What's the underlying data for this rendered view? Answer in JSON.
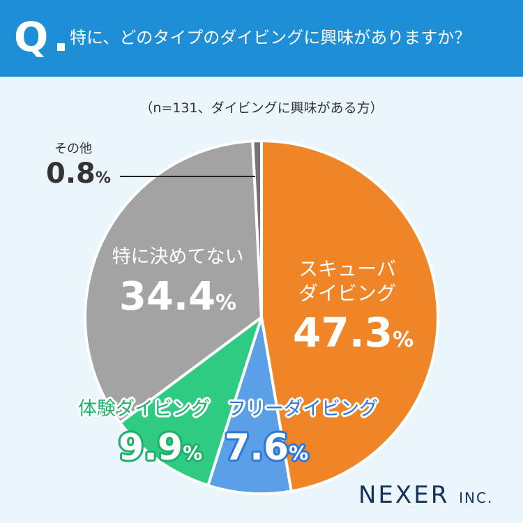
{
  "header": {
    "q_mark": "Q",
    "question": "特に、どのタイプのダイビングに興味がありますか？"
  },
  "subtitle": "（n=131、ダイビングに興味がある方）",
  "brand": {
    "name": "NEXER",
    "suffix": "INC."
  },
  "chart_data": {
    "type": "pie",
    "title": "",
    "subtitle": "",
    "slices": [
      {
        "label": "スキューバ\nダイビング",
        "value": 47.3,
        "display": "47.3",
        "color": "#ef8527"
      },
      {
        "label": "フリーダイビング",
        "value": 7.6,
        "display": "7.6",
        "color": "#5b9fe6"
      },
      {
        "label": "体験ダイビング",
        "value": 9.9,
        "display": "9.9",
        "color": "#2ecc83"
      },
      {
        "label": "特に決めてない",
        "value": 34.4,
        "display": "34.4",
        "color": "#a3a3a3"
      },
      {
        "label": "その他",
        "value": 0.8,
        "display": "0.8",
        "color": "#737373"
      }
    ],
    "percent_sign": "%"
  }
}
